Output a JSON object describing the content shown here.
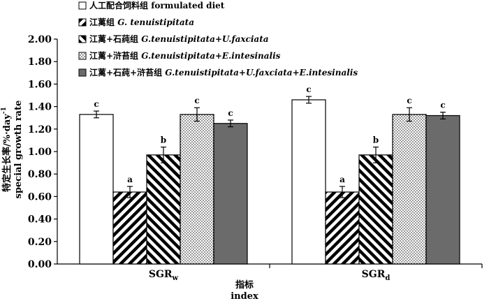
{
  "chart_data": {
    "type": "bar",
    "categories": [
      "SGR_w",
      "SGR_d"
    ],
    "category_labels": [
      {
        "main": "SGR",
        "sub": "w"
      },
      {
        "main": "SGR",
        "sub": "d"
      }
    ],
    "series": [
      {
        "name": "人工配合饲料组 formulated diet",
        "name_cn": "人工配合饲料组",
        "name_en": "formulated diet",
        "pattern": "white",
        "values": [
          1.33,
          1.46
        ],
        "errors": [
          0.03,
          0.03
        ],
        "letters": [
          "c",
          "c"
        ]
      },
      {
        "name": "江蓠组 G. tenuistipitata",
        "name_cn": "江蓠组",
        "name_en": "G. tenuistipitata",
        "pattern": "diag-right",
        "values": [
          0.64,
          0.64
        ],
        "errors": [
          0.05,
          0.05
        ],
        "letters": [
          "a",
          "a"
        ]
      },
      {
        "name": "江蓠+石莼组 G.tenuistipitata+U.faxciata",
        "name_cn": "江蓠+石莼组",
        "name_en": "G.tenuistipitata+U.faxciata",
        "pattern": "diag-left",
        "values": [
          0.97,
          0.97
        ],
        "errors": [
          0.07,
          0.07
        ],
        "letters": [
          "b",
          "b"
        ]
      },
      {
        "name": "江蓠+浒苔组 G.tenuistipitata+E.intesinalis",
        "name_cn": "江蓠+浒苔组",
        "name_en": "G.tenuistipitata+E.intesinalis",
        "pattern": "dots",
        "values": [
          1.33,
          1.33
        ],
        "errors": [
          0.06,
          0.06
        ],
        "letters": [
          "c",
          "c"
        ]
      },
      {
        "name": "江蓠+石莼+浒苔组 G.tenuistipitata+U.faxciata+E.intesinalis",
        "name_cn": "江蓠+石莼+浒苔组",
        "name_en": "G.tenuistipitata+U.faxciata+E.intesinalis",
        "pattern": "gray",
        "values": [
          1.25,
          1.32
        ],
        "errors": [
          0.03,
          0.03
        ],
        "letters": [
          "c",
          "c"
        ]
      }
    ],
    "ylabel_cn": "特定生长率/%·day",
    "ylabel_sup": "-1",
    "ylabel_en": "special growth rate",
    "xlabel_cn": "指标",
    "xlabel_en": "index",
    "ylim": [
      0,
      2.0
    ],
    "yticks": [
      "0.00",
      "0.20",
      "0.40",
      "0.60",
      "0.80",
      "1.00",
      "1.20",
      "1.40",
      "1.60",
      "1.80",
      "2.00"
    ],
    "grid": false,
    "legend_position": "top-left"
  }
}
